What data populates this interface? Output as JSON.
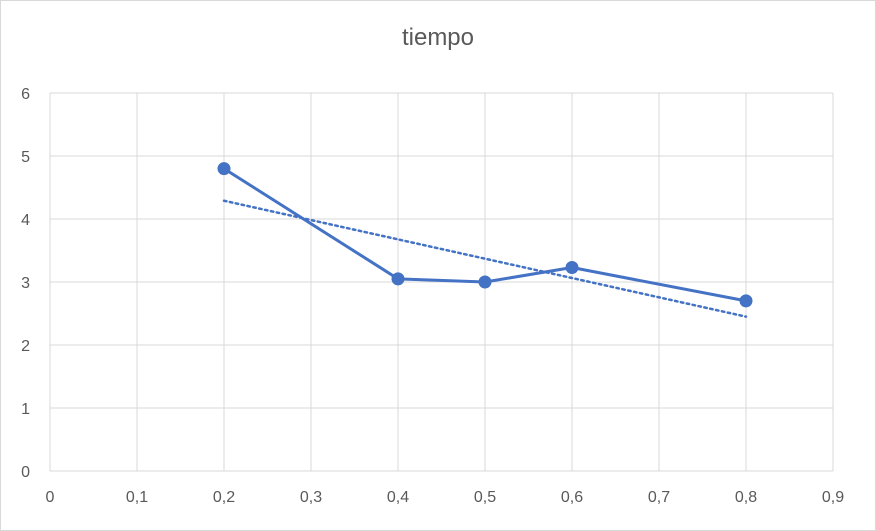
{
  "chart_data": {
    "type": "scatter",
    "title": "tiempo",
    "xlabel": "",
    "ylabel": "",
    "xlim": [
      0,
      0.9
    ],
    "ylim": [
      0,
      6
    ],
    "x_ticks": [
      "0",
      "0,1",
      "0,2",
      "0,3",
      "0,4",
      "0,5",
      "0,6",
      "0,7",
      "0,8",
      "0,9"
    ],
    "y_ticks": [
      "0",
      "1",
      "2",
      "3",
      "4",
      "5",
      "6"
    ],
    "grid": true,
    "legend": "none",
    "series": [
      {
        "x": [
          0.2,
          0.4,
          0.5,
          0.6,
          0.8
        ],
        "y": [
          4.8,
          3.05,
          3.0,
          3.23,
          2.7
        ],
        "style": "line-with-markers",
        "color": "#4472C4"
      }
    ],
    "trendline": {
      "type": "linear",
      "style": "dotted",
      "color": "#4472C4",
      "x": [
        0.2,
        0.8
      ],
      "y": [
        4.29,
        2.45
      ]
    }
  }
}
